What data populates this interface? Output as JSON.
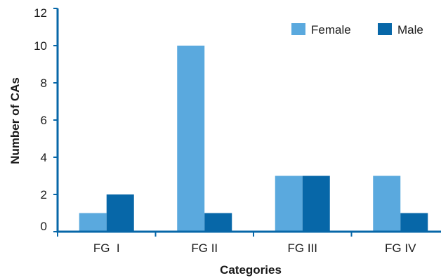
{
  "chart_data": {
    "type": "bar",
    "categories": [
      "FG  I",
      "FG II",
      "FG III",
      "FG IV"
    ],
    "series": [
      {
        "name": "Female",
        "values": [
          1,
          10,
          3,
          3
        ],
        "color": "#5aa9de"
      },
      {
        "name": "Male",
        "values": [
          2,
          1,
          3,
          1
        ],
        "color": "#0767a8"
      }
    ],
    "xlabel": "Categories",
    "ylabel": "Number of CAs",
    "ylim": [
      0,
      12
    ],
    "yticks": [
      0,
      2,
      4,
      6,
      8,
      10,
      12
    ],
    "grid": false,
    "legend_position": "top-right",
    "axis_color": "#0767a8"
  }
}
